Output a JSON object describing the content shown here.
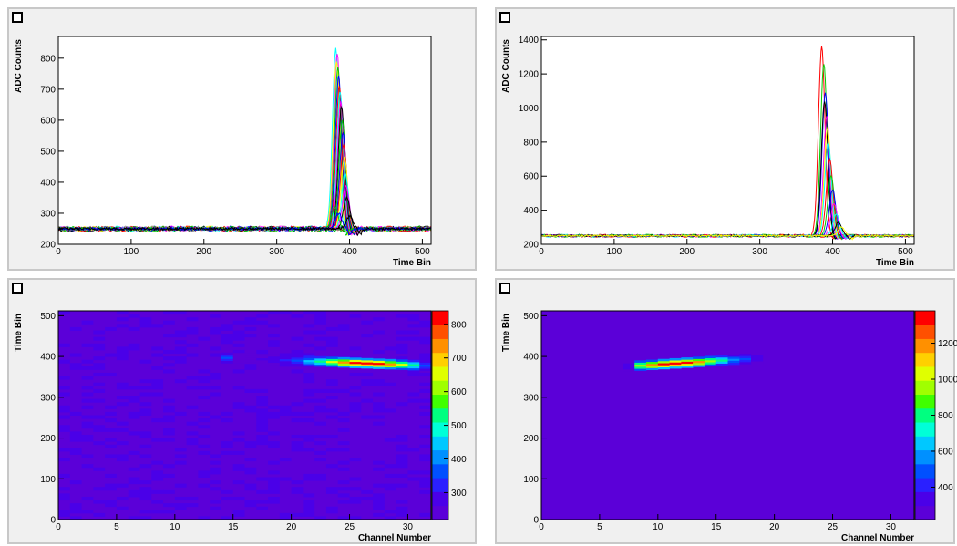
{
  "chart_data": [
    {
      "type": "line",
      "ylabel": "ADC Counts",
      "xlabel": "Time Bin",
      "xlim": [
        0,
        512
      ],
      "ylim": [
        200,
        870
      ],
      "xticks": [
        0,
        100,
        200,
        300,
        400,
        500
      ],
      "yticks": [
        200,
        300,
        400,
        500,
        600,
        700,
        800
      ],
      "baseline": 250,
      "series_description": "about 32 overlaid channel waveforms, flat near 250 counts with a narrow pulse near time bin 380",
      "peaks": [
        {
          "center": 381,
          "amplitude": 830,
          "color": "#00ffff"
        },
        {
          "center": 383,
          "amplitude": 815,
          "color": "#ff00ff"
        },
        {
          "center": 382,
          "amplitude": 790,
          "color": "#ffff00"
        },
        {
          "center": 384,
          "amplitude": 770,
          "color": "#00cc00"
        },
        {
          "center": 385,
          "amplitude": 740,
          "color": "#0000ff"
        },
        {
          "center": 386,
          "amplitude": 710,
          "color": "#ff0000"
        },
        {
          "center": 387,
          "amplitude": 690,
          "color": "#00ffff"
        },
        {
          "center": 388,
          "amplitude": 660,
          "color": "#ff00ff"
        },
        {
          "center": 389,
          "amplitude": 640,
          "color": "#000000"
        },
        {
          "center": 390,
          "amplitude": 600,
          "color": "#00cc00"
        },
        {
          "center": 391,
          "amplitude": 560,
          "color": "#0000ff"
        },
        {
          "center": 392,
          "amplitude": 520,
          "color": "#ff0000"
        },
        {
          "center": 393,
          "amplitude": 480,
          "color": "#ffff00"
        },
        {
          "center": 394,
          "amplitude": 430,
          "color": "#00ffff"
        },
        {
          "center": 395,
          "amplitude": 390,
          "color": "#ff00ff"
        },
        {
          "center": 396,
          "amplitude": 350,
          "color": "#000000"
        },
        {
          "center": 380,
          "amplitude": 320,
          "color": "#00cc00"
        },
        {
          "center": 385,
          "amplitude": 300,
          "color": "#0000ff"
        },
        {
          "center": 400,
          "amplitude": 290,
          "color": "#000000"
        }
      ]
    },
    {
      "type": "line",
      "ylabel": "ADC Counts",
      "xlabel": "Time Bin",
      "xlim": [
        0,
        512
      ],
      "ylim": [
        200,
        1420
      ],
      "xticks": [
        0,
        100,
        200,
        300,
        400,
        500
      ],
      "yticks": [
        200,
        400,
        600,
        800,
        1000,
        1200,
        1400
      ],
      "baseline": 250,
      "series_description": "about 32 overlaid channel waveforms, flat near 250 counts with a narrow pulse near time bin 385",
      "peaks": [
        {
          "center": 385,
          "amplitude": 1360,
          "color": "#ff0000"
        },
        {
          "center": 388,
          "amplitude": 1260,
          "color": "#00cc00"
        },
        {
          "center": 390,
          "amplitude": 1090,
          "color": "#0000ff"
        },
        {
          "center": 389,
          "amplitude": 1040,
          "color": "#000000"
        },
        {
          "center": 392,
          "amplitude": 950,
          "color": "#ff00ff"
        },
        {
          "center": 393,
          "amplitude": 880,
          "color": "#ffff00"
        },
        {
          "center": 394,
          "amplitude": 800,
          "color": "#00ffff"
        },
        {
          "center": 396,
          "amplitude": 700,
          "color": "#ff0000"
        },
        {
          "center": 398,
          "amplitude": 600,
          "color": "#00cc00"
        },
        {
          "center": 400,
          "amplitude": 520,
          "color": "#0000ff"
        },
        {
          "center": 402,
          "amplitude": 440,
          "color": "#ff00ff"
        },
        {
          "center": 405,
          "amplitude": 380,
          "color": "#00ffff"
        },
        {
          "center": 408,
          "amplitude": 330,
          "color": "#000000"
        },
        {
          "center": 412,
          "amplitude": 300,
          "color": "#ffff00"
        }
      ]
    },
    {
      "type": "heatmap",
      "ylabel": "Time Bin",
      "xlabel": "Channel Number",
      "xlim": [
        0,
        32
      ],
      "ylim": [
        0,
        512
      ],
      "xticks": [
        0,
        5,
        10,
        15,
        20,
        25,
        30
      ],
      "yticks": [
        0,
        100,
        200,
        300,
        400,
        500
      ],
      "z_range": [
        220,
        840
      ],
      "colorbar_ticks": [
        300,
        400,
        500,
        600,
        700,
        800
      ],
      "background_level": 250,
      "track": {
        "channel_start": 15,
        "channel_end": 31,
        "time_bin_start": 396,
        "time_bin_end": 378,
        "peak_channel": 26,
        "peak_value": 830
      },
      "noisy_background": true
    },
    {
      "type": "heatmap",
      "ylabel": "Time Bin",
      "xlabel": "Channel Number",
      "xlim": [
        0,
        32
      ],
      "ylim": [
        0,
        512
      ],
      "xticks": [
        0,
        5,
        10,
        15,
        20,
        25,
        30
      ],
      "yticks": [
        0,
        100,
        200,
        300,
        400,
        500
      ],
      "z_range": [
        220,
        1380
      ],
      "colorbar_ticks": [
        400,
        600,
        800,
        1000,
        1200
      ],
      "background_level": 250,
      "track": {
        "channel_start": 8,
        "channel_end": 18,
        "time_bin_start": 378,
        "time_bin_end": 396,
        "peak_channel": 11,
        "peak_value": 1360
      },
      "noisy_background": false
    }
  ]
}
